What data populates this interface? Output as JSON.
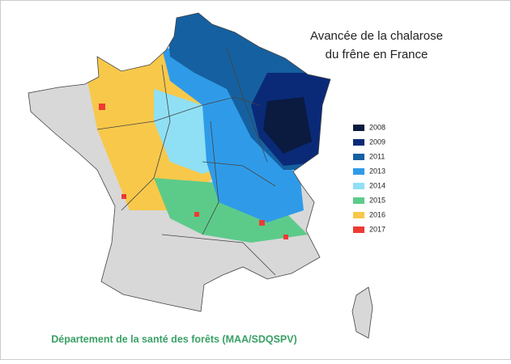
{
  "title": [
    "Avancée de la chalarose",
    "du frêne en France"
  ],
  "legend": {
    "items": [
      {
        "label": "2008",
        "color": "#0b1a3f"
      },
      {
        "label": "2009",
        "color": "#0a2a78"
      },
      {
        "label": "2011",
        "color": "#1560a0"
      },
      {
        "label": "2013",
        "color": "#2f9be8"
      },
      {
        "label": "2014",
        "color": "#8fe0f5"
      },
      {
        "label": "2015",
        "color": "#5ccb8a"
      },
      {
        "label": "2016",
        "color": "#f8c84a"
      },
      {
        "label": "2017",
        "color": "#ee3a34"
      }
    ]
  },
  "footer": "Département de la santé des forêts (MAA/SDQSPV)"
}
